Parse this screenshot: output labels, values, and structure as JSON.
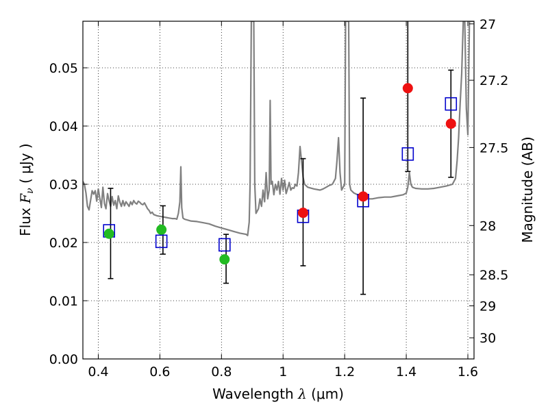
{
  "chart_data": {
    "type": "scatter",
    "xlabel": {
      "prefix": "Wavelength  ",
      "symbol": "λ",
      "unit": " (μm)"
    },
    "ylabel": {
      "prefix": "Flux  ",
      "symbol": "F",
      "sub": "ν",
      "unit": "  ( μJy )"
    },
    "y2label": "Magnitude (AB)",
    "xlim": [
      0.35,
      1.62
    ],
    "ylim": [
      0.0,
      0.058
    ],
    "xticks": [
      0.4,
      0.6,
      0.8,
      1.0,
      1.2,
      1.4,
      1.6
    ],
    "xtick_labels": [
      "0.4",
      "0.6",
      "0.8",
      "1",
      "1.2",
      "1.4",
      "1.6"
    ],
    "yticks": [
      0.0,
      0.01,
      0.02,
      0.03,
      0.04,
      0.05
    ],
    "ytick_labels": [
      "0.00",
      "0.01",
      "0.02",
      "0.03",
      "0.04",
      "0.05"
    ],
    "y2ticks": [
      27,
      27.2,
      27.5,
      28,
      28.5,
      29,
      30
    ],
    "y2tick_labels": [
      "27",
      "27.2",
      "27.5",
      "28",
      "28.5",
      "29",
      "30"
    ],
    "grid": true,
    "series": [
      {
        "kind": "spectrum",
        "color": "#808080",
        "points": [
          [
            0.35,
            0.0305
          ],
          [
            0.355,
            0.03
          ],
          [
            0.36,
            0.0285
          ],
          [
            0.365,
            0.0262
          ],
          [
            0.37,
            0.0256
          ],
          [
            0.375,
            0.0272
          ],
          [
            0.38,
            0.0289
          ],
          [
            0.385,
            0.0283
          ],
          [
            0.39,
            0.0289
          ],
          [
            0.395,
            0.0271
          ],
          [
            0.4,
            0.0292
          ],
          [
            0.405,
            0.0276
          ],
          [
            0.41,
            0.026
          ],
          [
            0.415,
            0.0295
          ],
          [
            0.42,
            0.0267
          ],
          [
            0.425,
            0.0258
          ],
          [
            0.43,
            0.0284
          ],
          [
            0.435,
            0.0272
          ],
          [
            0.44,
            0.0262
          ],
          [
            0.445,
            0.0279
          ],
          [
            0.45,
            0.0264
          ],
          [
            0.455,
            0.0272
          ],
          [
            0.46,
            0.0258
          ],
          [
            0.465,
            0.028
          ],
          [
            0.47,
            0.0269
          ],
          [
            0.475,
            0.0262
          ],
          [
            0.48,
            0.0272
          ],
          [
            0.485,
            0.0263
          ],
          [
            0.49,
            0.027
          ],
          [
            0.495,
            0.0266
          ],
          [
            0.5,
            0.0262
          ],
          [
            0.505,
            0.027
          ],
          [
            0.51,
            0.0265
          ],
          [
            0.515,
            0.0272
          ],
          [
            0.52,
            0.0268
          ],
          [
            0.525,
            0.0266
          ],
          [
            0.53,
            0.0271
          ],
          [
            0.535,
            0.0269
          ],
          [
            0.54,
            0.0266
          ],
          [
            0.545,
            0.0265
          ],
          [
            0.55,
            0.0268
          ],
          [
            0.555,
            0.0263
          ],
          [
            0.56,
            0.0258
          ],
          [
            0.565,
            0.0255
          ],
          [
            0.57,
            0.025
          ],
          [
            0.575,
            0.0252
          ],
          [
            0.58,
            0.0248
          ],
          [
            0.59,
            0.0246
          ],
          [
            0.6,
            0.0245
          ],
          [
            0.61,
            0.0244
          ],
          [
            0.62,
            0.0243
          ],
          [
            0.63,
            0.0242
          ],
          [
            0.64,
            0.0241
          ],
          [
            0.65,
            0.0241
          ],
          [
            0.655,
            0.024
          ],
          [
            0.66,
            0.025
          ],
          [
            0.665,
            0.027
          ],
          [
            0.668,
            0.033
          ],
          [
            0.671,
            0.026
          ],
          [
            0.675,
            0.0242
          ],
          [
            0.68,
            0.024
          ],
          [
            0.7,
            0.0237
          ],
          [
            0.72,
            0.0236
          ],
          [
            0.74,
            0.0234
          ],
          [
            0.76,
            0.0232
          ],
          [
            0.78,
            0.0228
          ],
          [
            0.8,
            0.0225
          ],
          [
            0.82,
            0.0222
          ],
          [
            0.84,
            0.0219
          ],
          [
            0.86,
            0.0216
          ],
          [
            0.88,
            0.0214
          ],
          [
            0.885,
            0.0212
          ],
          [
            0.89,
            0.0235
          ],
          [
            0.893,
            0.03
          ],
          [
            0.897,
            0.058
          ],
          [
            0.905,
            0.058
          ],
          [
            0.908,
            0.03
          ],
          [
            0.912,
            0.025
          ],
          [
            0.92,
            0.0258
          ],
          [
            0.925,
            0.0275
          ],
          [
            0.93,
            0.0262
          ],
          [
            0.935,
            0.029
          ],
          [
            0.94,
            0.027
          ],
          [
            0.945,
            0.032
          ],
          [
            0.95,
            0.0275
          ],
          [
            0.955,
            0.029
          ],
          [
            0.958,
            0.0444
          ],
          [
            0.961,
            0.03
          ],
          [
            0.965,
            0.0305
          ],
          [
            0.97,
            0.0282
          ],
          [
            0.975,
            0.03
          ],
          [
            0.98,
            0.029
          ],
          [
            0.985,
            0.0305
          ],
          [
            0.99,
            0.0283
          ],
          [
            0.995,
            0.031
          ],
          [
            1.0,
            0.029
          ],
          [
            1.005,
            0.0307
          ],
          [
            1.01,
            0.0284
          ],
          [
            1.015,
            0.0293
          ],
          [
            1.02,
            0.0303
          ],
          [
            1.025,
            0.029
          ],
          [
            1.03,
            0.0294
          ],
          [
            1.035,
            0.0293
          ],
          [
            1.04,
            0.03
          ],
          [
            1.045,
            0.0297
          ],
          [
            1.05,
            0.032
          ],
          [
            1.055,
            0.0365
          ],
          [
            1.06,
            0.034
          ],
          [
            1.065,
            0.0312
          ],
          [
            1.07,
            0.03
          ],
          [
            1.08,
            0.0295
          ],
          [
            1.1,
            0.0292
          ],
          [
            1.12,
            0.029
          ],
          [
            1.13,
            0.0292
          ],
          [
            1.14,
            0.0295
          ],
          [
            1.15,
            0.0298
          ],
          [
            1.16,
            0.03
          ],
          [
            1.17,
            0.031
          ],
          [
            1.175,
            0.034
          ],
          [
            1.18,
            0.038
          ],
          [
            1.185,
            0.032
          ],
          [
            1.19,
            0.029
          ],
          [
            1.2,
            0.03
          ],
          [
            1.203,
            0.058
          ],
          [
            1.213,
            0.058
          ],
          [
            1.216,
            0.03
          ],
          [
            1.22,
            0.029
          ],
          [
            1.23,
            0.0285
          ],
          [
            1.25,
            0.028
          ],
          [
            1.27,
            0.0275
          ],
          [
            1.29,
            0.0275
          ],
          [
            1.31,
            0.0277
          ],
          [
            1.33,
            0.0278
          ],
          [
            1.35,
            0.0278
          ],
          [
            1.37,
            0.028
          ],
          [
            1.39,
            0.0282
          ],
          [
            1.4,
            0.0285
          ],
          [
            1.405,
            0.0295
          ],
          [
            1.41,
            0.032
          ],
          [
            1.415,
            0.03
          ],
          [
            1.42,
            0.0295
          ],
          [
            1.43,
            0.0293
          ],
          [
            1.45,
            0.0292
          ],
          [
            1.47,
            0.0292
          ],
          [
            1.49,
            0.0293
          ],
          [
            1.51,
            0.0295
          ],
          [
            1.53,
            0.0297
          ],
          [
            1.55,
            0.03
          ],
          [
            1.56,
            0.031
          ],
          [
            1.565,
            0.034
          ],
          [
            1.57,
            0.038
          ],
          [
            1.575,
            0.044
          ],
          [
            1.58,
            0.049
          ],
          [
            1.585,
            0.058
          ],
          [
            1.59,
            0.058
          ],
          [
            1.595,
            0.043
          ],
          [
            1.6,
            0.0385
          ],
          [
            1.605,
            0.058
          ],
          [
            1.62,
            0.058
          ]
        ]
      },
      {
        "kind": "errorbars",
        "color": "#000000",
        "points": [
          {
            "x": 0.44,
            "low": 0.0138,
            "high": 0.0293
          },
          {
            "x": 0.61,
            "low": 0.018,
            "high": 0.0263
          },
          {
            "x": 0.815,
            "low": 0.013,
            "high": 0.0214
          },
          {
            "x": 1.065,
            "low": 0.016,
            "high": 0.0344
          },
          {
            "x": 1.26,
            "low": 0.0111,
            "high": 0.0448
          },
          {
            "x": 1.405,
            "low": 0.0322,
            "high": 0.058
          },
          {
            "x": 1.545,
            "low": 0.0312,
            "high": 0.0496
          }
        ]
      },
      {
        "kind": "model-squares",
        "color": "#0000cc",
        "points": [
          [
            0.435,
            0.022
          ],
          [
            0.605,
            0.0202
          ],
          [
            0.81,
            0.0196
          ],
          [
            1.065,
            0.0245
          ],
          [
            1.26,
            0.0272
          ],
          [
            1.405,
            0.0352
          ],
          [
            1.545,
            0.0438
          ]
        ]
      },
      {
        "kind": "ground-detections",
        "color": "#22bb22",
        "points": [
          [
            0.435,
            0.0215
          ],
          [
            0.605,
            0.0222
          ],
          [
            0.81,
            0.0171
          ]
        ]
      },
      {
        "kind": "nir-detections",
        "color": "#ee1111",
        "points": [
          [
            1.065,
            0.0251
          ],
          [
            1.26,
            0.0279
          ],
          [
            1.405,
            0.0465
          ],
          [
            1.545,
            0.0404
          ]
        ]
      }
    ]
  }
}
